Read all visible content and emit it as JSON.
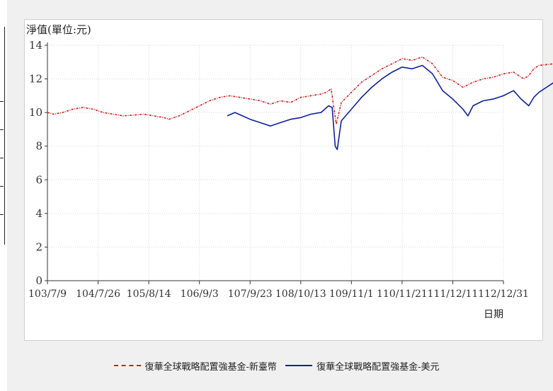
{
  "chart_data": {
    "type": "line",
    "ylabel": "淨值(單位:元)",
    "xlabel": "日期",
    "ylim": [
      0,
      14
    ],
    "yticks": [
      0,
      2,
      4,
      6,
      8,
      10,
      12,
      14
    ],
    "xticks": [
      "103/7/9",
      "104/7/26",
      "105/8/14",
      "106/9/3",
      "107/9/23",
      "108/10/13",
      "109/11/1",
      "110/11/21",
      "111/12/11",
      "112/12/31"
    ],
    "grid": true,
    "legend_position": "bottom",
    "series": [
      {
        "name": "復華全球戰略配置強基金-新臺幣",
        "color": "#cc2222",
        "style": "dashdot",
        "points": [
          [
            0,
            10.0
          ],
          [
            0.12,
            9.9
          ],
          [
            0.3,
            10.0
          ],
          [
            0.5,
            10.2
          ],
          [
            0.7,
            10.3
          ],
          [
            0.9,
            10.2
          ],
          [
            1.0,
            10.1
          ],
          [
            1.1,
            10.0
          ],
          [
            1.3,
            9.9
          ],
          [
            1.5,
            9.8
          ],
          [
            1.7,
            9.85
          ],
          [
            1.9,
            9.9
          ],
          [
            2.1,
            9.8
          ],
          [
            2.3,
            9.7
          ],
          [
            2.4,
            9.6
          ],
          [
            2.6,
            9.8
          ],
          [
            2.8,
            10.1
          ],
          [
            3.0,
            10.4
          ],
          [
            3.2,
            10.7
          ],
          [
            3.4,
            10.9
          ],
          [
            3.6,
            11.0
          ],
          [
            3.8,
            10.9
          ],
          [
            4.0,
            10.8
          ],
          [
            4.2,
            10.7
          ],
          [
            4.4,
            10.5
          ],
          [
            4.6,
            10.7
          ],
          [
            4.8,
            10.6
          ],
          [
            5.0,
            10.9
          ],
          [
            5.2,
            11.0
          ],
          [
            5.4,
            11.1
          ],
          [
            5.5,
            11.2
          ],
          [
            5.6,
            11.4
          ],
          [
            5.7,
            9.3
          ],
          [
            5.8,
            10.6
          ],
          [
            6.0,
            11.2
          ],
          [
            6.2,
            11.8
          ],
          [
            6.4,
            12.2
          ],
          [
            6.6,
            12.6
          ],
          [
            6.8,
            12.9
          ],
          [
            7.0,
            13.2
          ],
          [
            7.2,
            13.1
          ],
          [
            7.4,
            13.3
          ],
          [
            7.6,
            12.9
          ],
          [
            7.8,
            12.1
          ],
          [
            8.0,
            11.9
          ],
          [
            8.2,
            11.5
          ],
          [
            8.4,
            11.8
          ],
          [
            8.6,
            12.0
          ],
          [
            8.8,
            12.1
          ],
          [
            9.0,
            12.3
          ],
          [
            9.2,
            12.4
          ],
          [
            9.4,
            12.0
          ],
          [
            9.5,
            12.2
          ],
          [
            9.6,
            12.6
          ],
          [
            9.7,
            12.8
          ],
          [
            10,
            12.9
          ]
        ]
      },
      {
        "name": "復華全球戰略配置強基金-美元",
        "color": "#1020a0",
        "style": "solid",
        "points": [
          [
            3.55,
            9.8
          ],
          [
            3.7,
            10.0
          ],
          [
            3.85,
            9.8
          ],
          [
            4.0,
            9.6
          ],
          [
            4.2,
            9.4
          ],
          [
            4.4,
            9.2
          ],
          [
            4.6,
            9.4
          ],
          [
            4.8,
            9.6
          ],
          [
            5.0,
            9.7
          ],
          [
            5.2,
            9.9
          ],
          [
            5.4,
            10.0
          ],
          [
            5.55,
            10.4
          ],
          [
            5.62,
            10.3
          ],
          [
            5.68,
            8.0
          ],
          [
            5.72,
            7.8
          ],
          [
            5.8,
            9.5
          ],
          [
            6.0,
            10.2
          ],
          [
            6.2,
            10.9
          ],
          [
            6.4,
            11.5
          ],
          [
            6.6,
            12.0
          ],
          [
            6.8,
            12.4
          ],
          [
            7.0,
            12.7
          ],
          [
            7.2,
            12.6
          ],
          [
            7.4,
            12.8
          ],
          [
            7.6,
            12.3
          ],
          [
            7.8,
            11.3
          ],
          [
            8.0,
            10.8
          ],
          [
            8.2,
            10.2
          ],
          [
            8.3,
            9.8
          ],
          [
            8.4,
            10.4
          ],
          [
            8.6,
            10.7
          ],
          [
            8.8,
            10.8
          ],
          [
            9.0,
            11.0
          ],
          [
            9.2,
            11.3
          ],
          [
            9.35,
            10.8
          ],
          [
            9.5,
            10.4
          ],
          [
            9.6,
            10.9
          ],
          [
            9.7,
            11.2
          ],
          [
            9.85,
            11.5
          ],
          [
            10,
            11.8
          ]
        ]
      }
    ]
  }
}
